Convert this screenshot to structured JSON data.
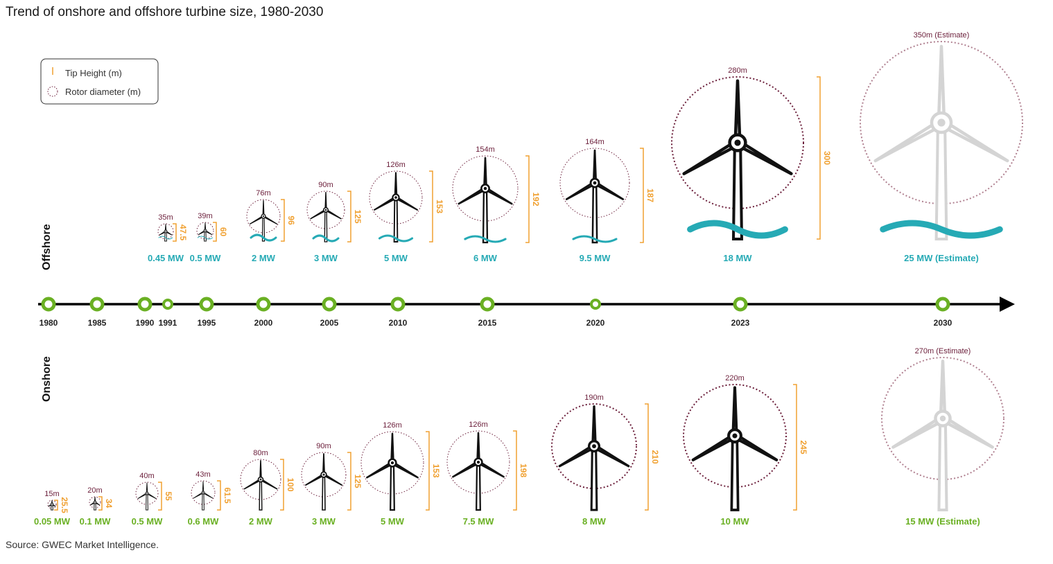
{
  "title": "Trend of onshore and offshore turbine size, 1980-2030",
  "source": "Source: GWEC Market Intelligence.",
  "legend": {
    "tip_height": "Tip Height (m)",
    "rotor_diameter": "Rotor diameter (m)"
  },
  "sections": {
    "offshore": "Offshore",
    "onshore": "Onshore"
  },
  "colors": {
    "timeline_dot": "#6ab023",
    "offshore_caption": "#26aab5",
    "onshore_caption": "#6ab023",
    "tip_height": "#f0a030",
    "rotor_circle": "#6b1e3a",
    "estimate": "#d4d4d4",
    "water": "#26aab5"
  },
  "chart_data": {
    "type": "timeline",
    "timeline_years": [
      "1980",
      "1985",
      "1990",
      "1991",
      "1995",
      "2000",
      "2005",
      "2010",
      "2015",
      "2020",
      "2023",
      "2030"
    ],
    "offshore": [
      {
        "year": "1991",
        "capacity": "0.45 MW",
        "rotor_diameter_m": 35,
        "rotor_label": "35m",
        "tip_height_m": 47.5,
        "tip_label": "47.5"
      },
      {
        "year": "1995",
        "capacity": "0.5 MW",
        "rotor_diameter_m": 39,
        "rotor_label": "39m",
        "tip_height_m": 60,
        "tip_label": "60"
      },
      {
        "year": "2000",
        "capacity": "2 MW",
        "rotor_diameter_m": 76,
        "rotor_label": "76m",
        "tip_height_m": 96,
        "tip_label": "96"
      },
      {
        "year": "2005",
        "capacity": "3 MW",
        "rotor_diameter_m": 90,
        "rotor_label": "90m",
        "tip_height_m": 125,
        "tip_label": "125"
      },
      {
        "year": "2010",
        "capacity": "5 MW",
        "rotor_diameter_m": 126,
        "rotor_label": "126m",
        "tip_height_m": 153,
        "tip_label": "153"
      },
      {
        "year": "2015",
        "capacity": "6 MW",
        "rotor_diameter_m": 154,
        "rotor_label": "154m",
        "tip_height_m": 192,
        "tip_label": "192"
      },
      {
        "year": "2020",
        "capacity": "9.5 MW",
        "rotor_diameter_m": 164,
        "rotor_label": "164m",
        "tip_height_m": 187,
        "tip_label": "187"
      },
      {
        "year": "2023",
        "capacity": "18 MW",
        "rotor_diameter_m": 280,
        "rotor_label": "280m",
        "tip_height_m": 300,
        "tip_label": "300"
      },
      {
        "year": "2030",
        "capacity": "25 MW (Estimate)",
        "rotor_diameter_m": 350,
        "rotor_label": "350m (Estimate)",
        "tip_height_m": null,
        "tip_label": null,
        "estimate": true
      }
    ],
    "onshore": [
      {
        "year": "1980",
        "capacity": "0.05 MW",
        "rotor_diameter_m": 15,
        "rotor_label": "15m",
        "tip_height_m": 25.5,
        "tip_label": "25.5"
      },
      {
        "year": "1985",
        "capacity": "0.1 MW",
        "rotor_diameter_m": 20,
        "rotor_label": "20m",
        "tip_height_m": 34,
        "tip_label": "34"
      },
      {
        "year": "1990",
        "capacity": "0.5 MW",
        "rotor_diameter_m": 40,
        "rotor_label": "40m",
        "tip_height_m": 55,
        "tip_label": "55"
      },
      {
        "year": "1995",
        "capacity": "0.6 MW",
        "rotor_diameter_m": 43,
        "rotor_label": "43m",
        "tip_height_m": 61.5,
        "tip_label": "61.5"
      },
      {
        "year": "2000",
        "capacity": "2 MW",
        "rotor_diameter_m": 80,
        "rotor_label": "80m",
        "tip_height_m": 100,
        "tip_label": "100"
      },
      {
        "year": "2005",
        "capacity": "3 MW",
        "rotor_diameter_m": 90,
        "rotor_label": "90m",
        "tip_height_m": 125,
        "tip_label": "125"
      },
      {
        "year": "2010",
        "capacity": "5 MW",
        "rotor_diameter_m": 126,
        "rotor_label": "126m",
        "tip_height_m": 153,
        "tip_label": "153"
      },
      {
        "year": "2015",
        "capacity": "7.5 MW",
        "rotor_diameter_m": 126,
        "rotor_label": "126m",
        "tip_height_m": 198,
        "tip_label": "198"
      },
      {
        "year": "2020",
        "capacity": "8 MW",
        "rotor_diameter_m": 190,
        "rotor_label": "190m",
        "tip_height_m": 210,
        "tip_label": "210"
      },
      {
        "year": "2023",
        "capacity": "10 MW",
        "rotor_diameter_m": 220,
        "rotor_label": "220m",
        "tip_height_m": 245,
        "tip_label": "245"
      },
      {
        "year": "2030",
        "capacity": "15 MW (Estimate)",
        "rotor_diameter_m": 270,
        "rotor_label": "270m (Estimate)",
        "tip_height_m": null,
        "tip_label": null,
        "estimate": true
      }
    ]
  }
}
